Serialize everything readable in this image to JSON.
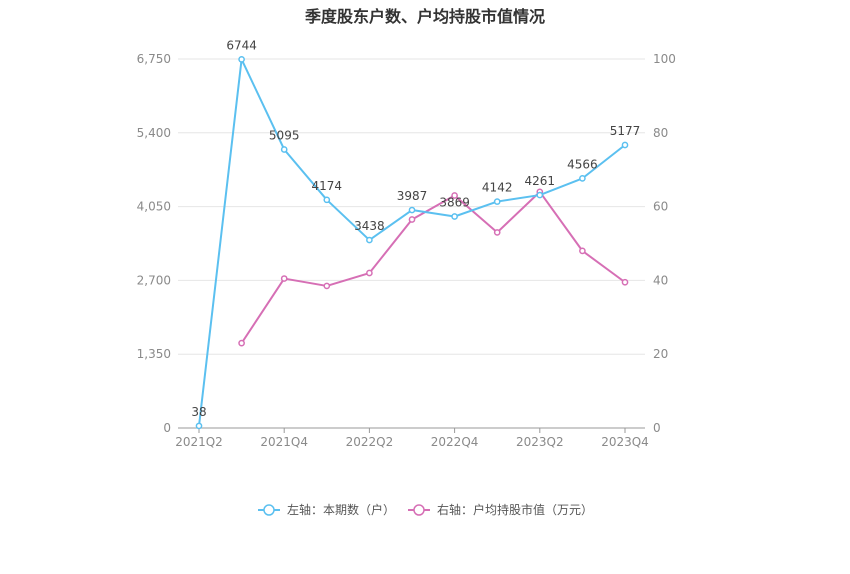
{
  "chart_data": {
    "type": "line",
    "title": "季度股东户数、户均持股市值情况",
    "categories": [
      "2021Q2",
      "2021Q3",
      "2021Q4",
      "2022Q1",
      "2022Q2",
      "2022Q3",
      "2022Q4",
      "2023Q1",
      "2023Q2",
      "2023Q3",
      "2023Q4"
    ],
    "x_tick_labels": [
      "2021Q2",
      "2021Q4",
      "2022Q2",
      "2022Q4",
      "2023Q2",
      "2023Q4"
    ],
    "left_axis": {
      "ticks": [
        "0",
        "1,350",
        "2,700",
        "4,050",
        "5,400",
        "6,750"
      ],
      "ylim": [
        0,
        6750
      ]
    },
    "right_axis": {
      "ticks": [
        "0",
        "20",
        "40",
        "60",
        "80",
        "100"
      ],
      "ylim": [
        0,
        100
      ]
    },
    "grid": true,
    "legend_position": "bottom-center",
    "series": [
      {
        "name": "左轴：本期数（户）",
        "axis": "left",
        "color": "#5bc0f0",
        "values": [
          38,
          6744,
          5095,
          4174,
          3438,
          3987,
          3869,
          4142,
          4261,
          4566,
          5177
        ],
        "labels": [
          "38",
          "6744",
          "5095",
          "4174",
          "3438",
          "3987",
          "3869",
          "4142",
          "4261",
          "4566",
          "5177"
        ]
      },
      {
        "name": "右轴：户均持股市值（万元）",
        "axis": "right",
        "color": "#d66fb5",
        "values": [
          null,
          23,
          40.5,
          38.5,
          42,
          56.5,
          63,
          53,
          64,
          48,
          39.5
        ]
      }
    ]
  }
}
